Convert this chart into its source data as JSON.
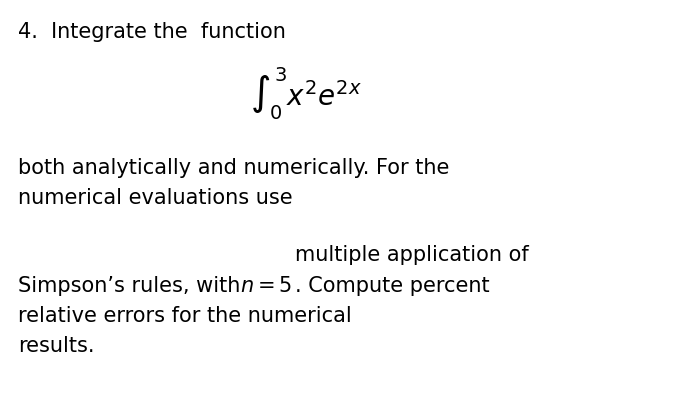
{
  "background_color": "#ffffff",
  "title_text": "4.  Integrate the  function",
  "title_fontsize": 15,
  "integral_formula": "$\\int_0^3 x^2 e^{2x}$",
  "integral_fontsize": 20,
  "line1_text": "both analytically and numerically. For the",
  "line2_text": "numerical evaluations use",
  "body_fontsize": 15,
  "indent_text": "multiple application of",
  "indent_fontsize": 15,
  "mixed_prefix": "Simpson’s rules, with ",
  "mixed_math": "$n = 5$",
  "mixed_suffix": ". Compute percent",
  "mixed_fontsize": 15,
  "line_last1": "relative errors for the numerical",
  "line_last2": "results.",
  "text_color": "#000000"
}
